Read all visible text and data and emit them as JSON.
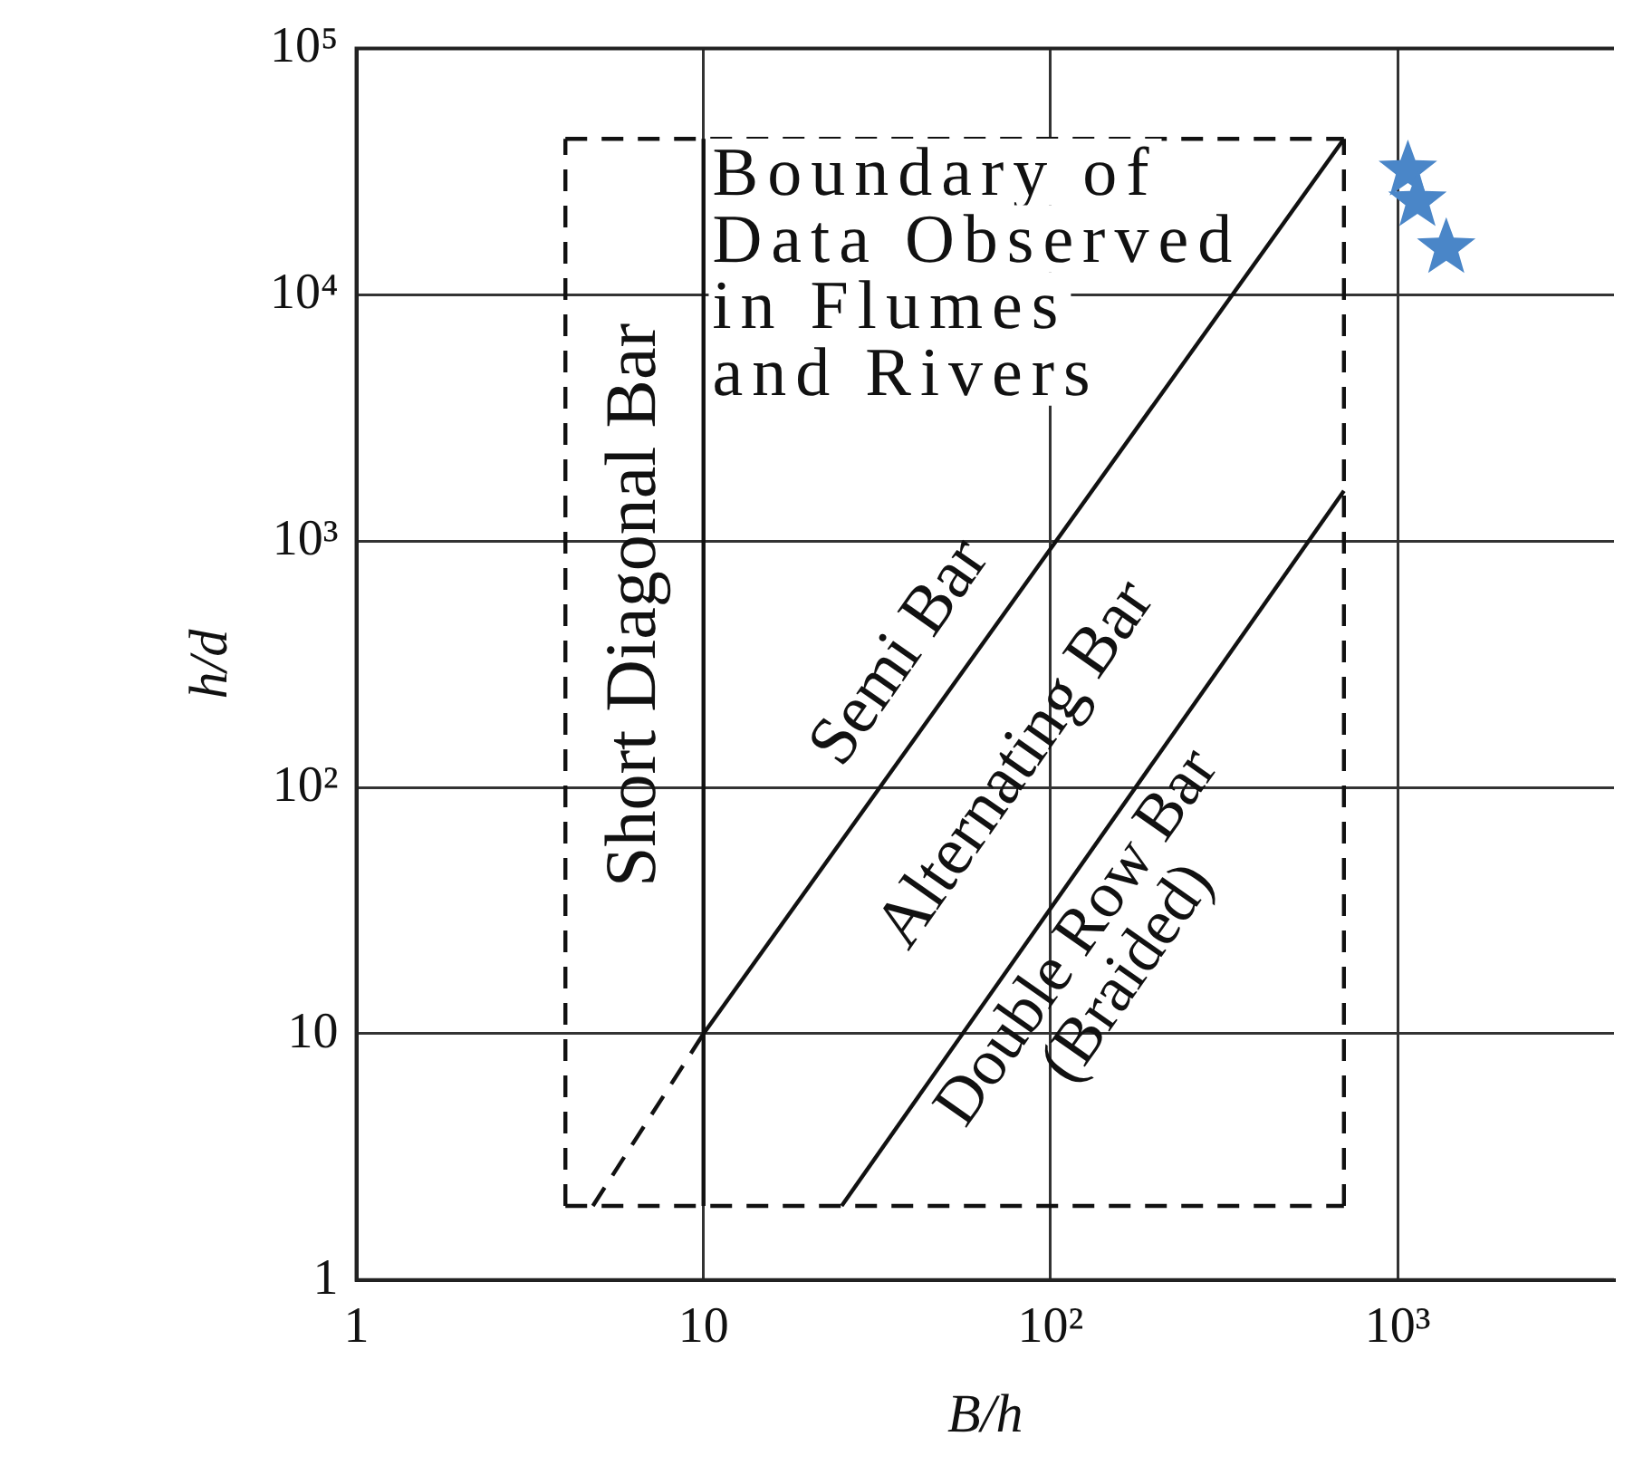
{
  "chart_data": {
    "type": "line",
    "xlabel": "B/h",
    "ylabel": "h/d",
    "log": "xy",
    "grid": true,
    "xlim": [
      1,
      4200
    ],
    "ylim": [
      1,
      100000
    ],
    "xticks": [
      1,
      10,
      {
        "value": 100,
        "label": "10²"
      },
      {
        "value": 1000,
        "label": "10³"
      }
    ],
    "yticks": [
      1,
      10,
      {
        "value": 100,
        "label": "10²"
      },
      {
        "value": 1000,
        "label": "10³"
      },
      {
        "value": 10000,
        "label": "10⁴"
      },
      {
        "value": 100000,
        "label": "10⁵"
      }
    ],
    "series": [
      {
        "type": "line",
        "color": "#111111",
        "line_style": "dashed",
        "x": [
          4,
          700
        ],
        "values": [
          43000,
          43000
        ]
      },
      {
        "type": "line",
        "color": "#111111",
        "line_style": "dashed",
        "x": [
          4,
          700
        ],
        "values": [
          2,
          2
        ]
      },
      {
        "type": "line",
        "color": "#111111",
        "line_style": "dashed",
        "x": [
          4,
          4
        ],
        "values": [
          2,
          43000
        ]
      },
      {
        "type": "line",
        "color": "#111111",
        "line_style": "dashed",
        "x": [
          700,
          700
        ],
        "values": [
          2,
          43000
        ]
      },
      {
        "type": "line",
        "color": "#111111",
        "line_style": "solid",
        "x": [
          10,
          10
        ],
        "values": [
          2,
          43000
        ]
      },
      {
        "type": "line",
        "color": "#111111",
        "line_style": "solid",
        "x": [
          10,
          700
        ],
        "values": [
          10,
          43000
        ]
      },
      {
        "type": "line",
        "color": "#111111",
        "line_style": "dashed",
        "x": [
          4.8,
          10
        ],
        "values": [
          2,
          10
        ]
      },
      {
        "type": "line",
        "color": "#111111",
        "line_style": "solid",
        "x": [
          25,
          700
        ],
        "values": [
          2,
          1600
        ]
      },
      {
        "type": "scatter",
        "marker": "star",
        "color": "#4a86c8",
        "x": [
          1070,
          1140,
          1380
        ],
        "values": [
          32000,
          24000,
          15500
        ]
      }
    ],
    "annotations": [
      "Boundary of\nData Observed\nin Flumes\nand Rivers",
      "Short Diagonal Bar",
      "Semi Bar",
      "Alternating Bar",
      "Double Row Bar\n(Braided)"
    ]
  }
}
